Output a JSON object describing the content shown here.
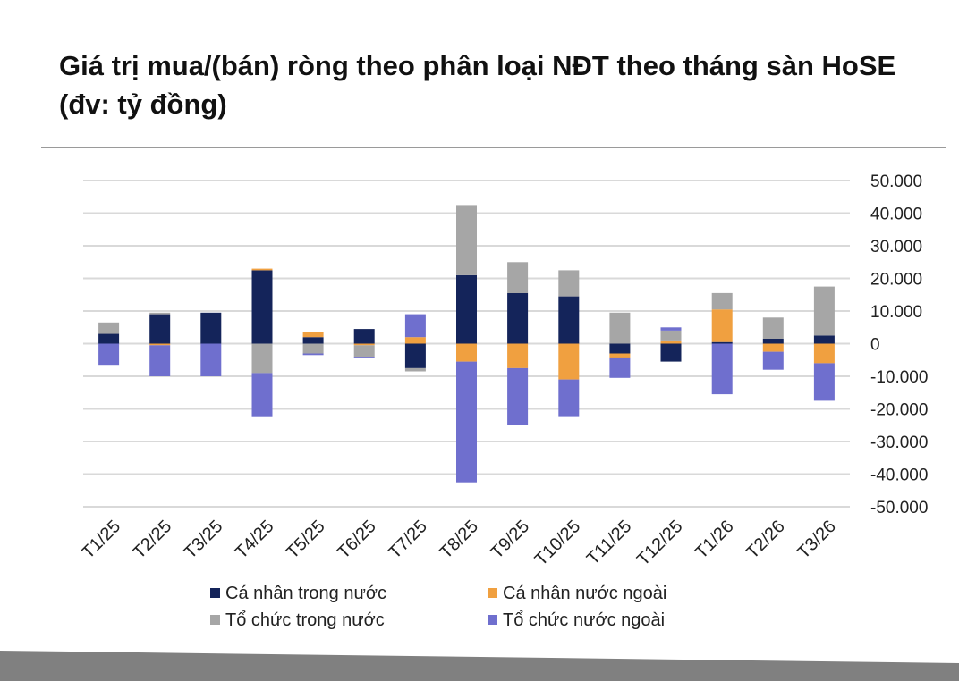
{
  "title": "Giá trị mua/(bán) ròng theo phân loại NĐT theo tháng sàn HoSE (đv: tỷ đồng)",
  "chart_data": {
    "type": "bar",
    "stacked": true,
    "categories": [
      "T1/25",
      "T2/25",
      "T3/25",
      "T4/25",
      "T5/25",
      "T6/25",
      "T7/25",
      "T8/25",
      "T9/25",
      "T10/25",
      "T11/25",
      "T12/25",
      "T1/26",
      "T2/26",
      "T3/26"
    ],
    "series": [
      {
        "name": "Cá nhân trong nước",
        "color": "#14245a",
        "values": [
          3000,
          9000,
          9500,
          22500,
          2000,
          4500,
          -7500,
          21000,
          15500,
          14500,
          -3000,
          -5500,
          500,
          1500,
          2500
        ]
      },
      {
        "name": "Cá nhân nước ngoài",
        "color": "#f0a040",
        "values": [
          0,
          -500,
          0,
          500,
          1500,
          -500,
          2000,
          -5500,
          -7500,
          -11000,
          -1500,
          1000,
          10000,
          -2500,
          -6000
        ]
      },
      {
        "name": "Tổ chức trong nước",
        "color": "#a6a6a6",
        "values": [
          3500,
          500,
          0,
          -9000,
          -3000,
          -3500,
          -1000,
          21500,
          9500,
          8000,
          9500,
          3000,
          5000,
          6500,
          15000
        ]
      },
      {
        "name": "Tổ chức nước ngoài",
        "color": "#6f6fce",
        "values": [
          -6500,
          -9500,
          -10000,
          -13500,
          -500,
          -500,
          7000,
          -37000,
          -17500,
          -11500,
          -6000,
          1000,
          -15500,
          -5500,
          -11500
        ]
      }
    ],
    "y_ticks": [
      "50.000",
      "40.000",
      "30.000",
      "20.000",
      "10.000",
      "0",
      "-10.000",
      "-20.000",
      "-30.000",
      "-40.000",
      "-50.000"
    ],
    "ylim": [
      -50000,
      50000
    ],
    "ylabel": "",
    "xlabel": "",
    "legend_position": "bottom",
    "grid": true
  }
}
